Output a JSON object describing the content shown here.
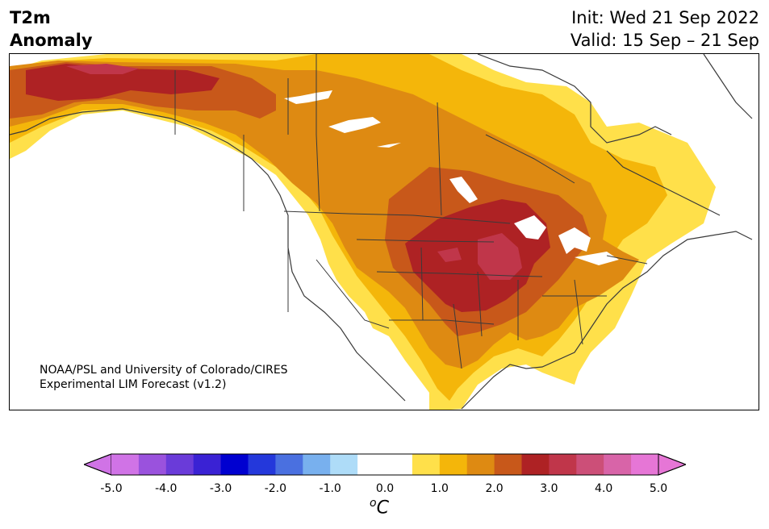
{
  "title_left": {
    "line1": "T2m",
    "line2": "Anomaly"
  },
  "title_right": {
    "init": "Init: Wed 21 Sep 2022",
    "valid": "Valid: 15 Sep – 21 Sep"
  },
  "credit": {
    "line1": "NOAA/PSL and University of Colorado/CIRES",
    "line2": "Experimental LIM Forecast (v1.2)"
  },
  "colorbar": {
    "tick_labels": [
      "-5.0",
      "-4.0",
      "-3.0",
      "-2.0",
      "-1.0",
      "0.0",
      "1.0",
      "2.0",
      "3.0",
      "4.0",
      "5.0"
    ],
    "units_base": "o",
    "units_letter": "C",
    "colors": [
      "#d073e6",
      "#9a52dd",
      "#6a3bd9",
      "#3a22d4",
      "#0000d0",
      "#2438db",
      "#4a70e0",
      "#78b0ee",
      "#aedcf8",
      "#ffffff",
      "#ffffff",
      "#ffe04a",
      "#f4b60a",
      "#de8a12",
      "#c8581a",
      "#ae2224",
      "#c0364a",
      "#cc4f78",
      "#d864a8",
      "#e676d6"
    ],
    "min_extend_color": "#d073e6",
    "max_extend_color": "#e676d6"
  },
  "map_colors": {
    "land_background": "#ffffff",
    "anomaly_0_5_1": "#ffe04a",
    "anomaly_1_1_5": "#f4b60a",
    "anomaly_1_5_2": "#de8a12",
    "anomaly_2_2_5": "#c8581a",
    "anomaly_2_5_3": "#ae2224",
    "anomaly_3_3_5": "#c0364a",
    "boundary_line": "#3a3a3a"
  }
}
